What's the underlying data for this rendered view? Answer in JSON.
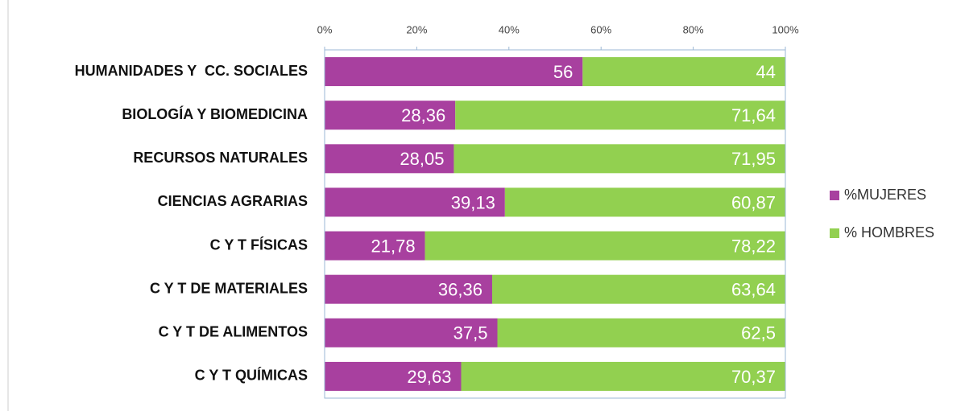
{
  "chart_data": {
    "type": "stacked-bar-horizontal",
    "categories": [
      "HUMANIDADES Y  CC. SOCIALES",
      "BIOLOGÍA Y BIOMEDICINA",
      "RECURSOS NATURALES",
      "CIENCIAS AGRARIAS",
      "C Y T FÍSICAS",
      "C Y T DE MATERIALES",
      "C Y T DE ALIMENTOS",
      "C Y T QUÍMICAS"
    ],
    "series": [
      {
        "name": "%MUJERES",
        "color": "#a8409f",
        "values": [
          56,
          28.36,
          28.05,
          39.13,
          21.78,
          36.36,
          37.5,
          29.63
        ],
        "value_labels": [
          "56",
          "28,36",
          "28,05",
          "39,13",
          "21,78",
          "36,36",
          "37,5",
          "29,63"
        ]
      },
      {
        "name": "% HOMBRES",
        "color": "#92d050",
        "values": [
          44,
          71.64,
          71.95,
          60.87,
          78.22,
          63.64,
          62.5,
          70.37
        ],
        "value_labels": [
          "44",
          "71,64",
          "71,95",
          "60,87",
          "78,22",
          "63,64",
          "62,5",
          "70,37"
        ]
      }
    ],
    "xlim": [
      0,
      100
    ],
    "xticks": [
      {
        "value": 0,
        "label": "0%"
      },
      {
        "value": 20,
        "label": "20%"
      },
      {
        "value": 40,
        "label": "40%"
      },
      {
        "value": 60,
        "label": "60%"
      },
      {
        "value": 80,
        "label": "80%"
      },
      {
        "value": 100,
        "label": "100%"
      }
    ],
    "grid": false,
    "legend": "right"
  }
}
